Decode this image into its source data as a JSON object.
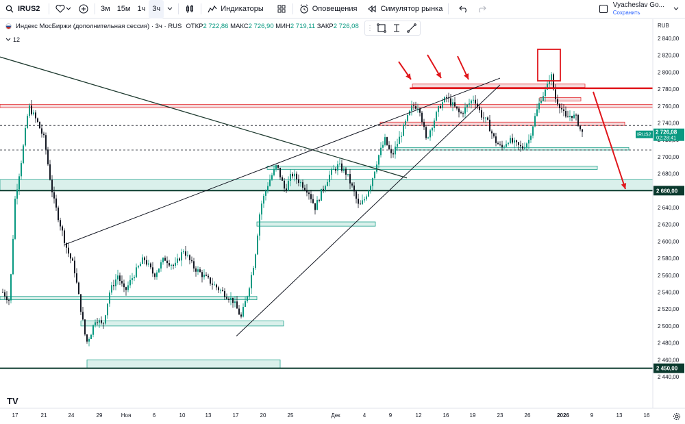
{
  "toolbar": {
    "symbol": "IRUS2",
    "timeframes": [
      "3м",
      "15м",
      "1ч",
      "3ч"
    ],
    "active_timeframe": "3ч",
    "indicators_label": "Индикаторы",
    "alerts_label": "Оповещения",
    "replay_label": "Симулятор рынка",
    "user_name": "Vyacheslav Go...",
    "save_label": "Сохранить"
  },
  "legend": {
    "title": "Индекс МосБиржи (дополнительная сессия) · 3ч · RUS",
    "open_label": "ОТКР",
    "open": "2 722,86",
    "high_label": "МАКС",
    "high": "2 726,90",
    "low_label": "МИН",
    "low": "2 719,11",
    "close_label": "ЗАКР",
    "close": "2 726,08",
    "indicators_count": "12"
  },
  "axis": {
    "currency": "RUB",
    "price_ticks": [
      "2 840,00",
      "2 820,00",
      "2 800,00",
      "2 780,00",
      "2 760,00",
      "2 740,00",
      "2 720,00",
      "2 700,00",
      "2 680,00",
      "2 660,00",
      "2 640,00",
      "2 620,00",
      "2 600,00",
      "2 580,00",
      "2 560,00",
      "2 540,00",
      "2 520,00",
      "2 500,00",
      "2 480,00",
      "2 460,00",
      "2 440,00"
    ],
    "time_ticks": [
      "17",
      "21",
      "24",
      "29",
      "Ноя",
      "6",
      "10",
      "13",
      "17",
      "20",
      "25",
      "Дек",
      "4",
      "9",
      "12",
      "16",
      "19",
      "23",
      "26",
      "2026",
      "9",
      "13",
      "16"
    ],
    "last_price_symbol": "IRUS2",
    "last_price": "2 726,08",
    "countdown": "02:28:41",
    "marker_2660": "2 660,00",
    "marker_2450": "2 450,00"
  },
  "colors": {
    "up": "#089981",
    "down": "#131722",
    "red": "#e0161b",
    "zone_green": "#d7efe9",
    "zone_red": "#f6d4d6",
    "accent": "#2962ff"
  },
  "chart_data": {
    "type": "candlestick",
    "ylim": [
      2440,
      2850
    ],
    "hlines": [
      2660,
      2450,
      2780,
      2760
    ],
    "last_price": 2726.08
  }
}
